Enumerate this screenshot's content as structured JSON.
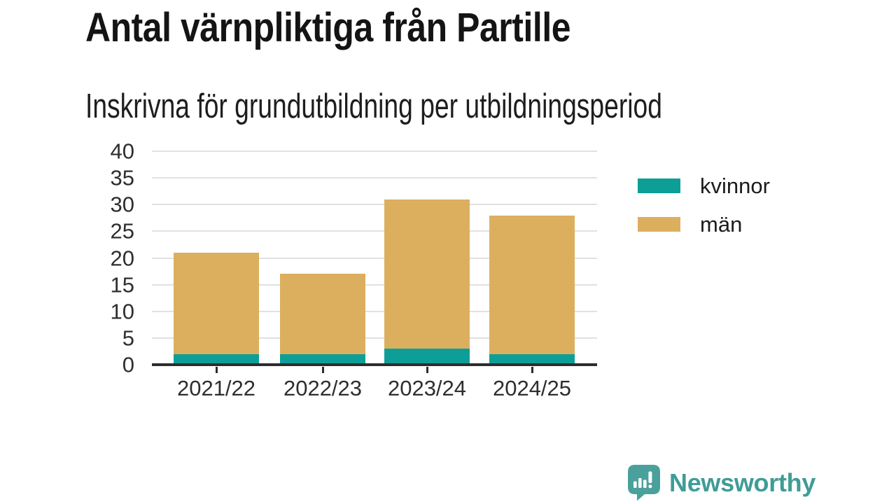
{
  "title": "Antal värnpliktiga från Partille",
  "subtitle": "Inskrivna för grundutbildning per utbildningsperiod",
  "chart_data": {
    "type": "bar",
    "stacked": true,
    "title": "Antal värnpliktiga från Partille",
    "subtitle": "Inskrivna för grundutbildning per utbildningsperiod",
    "categories": [
      "2021/22",
      "2022/23",
      "2023/24",
      "2024/25"
    ],
    "series": [
      {
        "name": "kvinnor",
        "color": "#0d9f97",
        "values": [
          2,
          2,
          3,
          2
        ]
      },
      {
        "name": "män",
        "color": "#dcaf5f",
        "values": [
          19,
          15,
          28,
          26
        ]
      }
    ],
    "totals": [
      21,
      17,
      31,
      28
    ],
    "xlabel": "",
    "ylabel": "",
    "ylim": [
      0,
      40
    ],
    "yticks": [
      0,
      5,
      10,
      15,
      20,
      25,
      30,
      35,
      40
    ],
    "grid": true,
    "legend_position": "right"
  },
  "branding": {
    "logo_icon": "newsworthy-speech-bubble-chart-icon",
    "logo_text": "Newsworthy",
    "logo_color": "#3f9c97",
    "icon_color": "#4aa19c"
  },
  "colors": {
    "background": "#ffffff",
    "axis": "#2d2d2d",
    "gridline": "#e1e1e1",
    "title_text": "#141414",
    "tick_text": "#2e2e2e"
  }
}
